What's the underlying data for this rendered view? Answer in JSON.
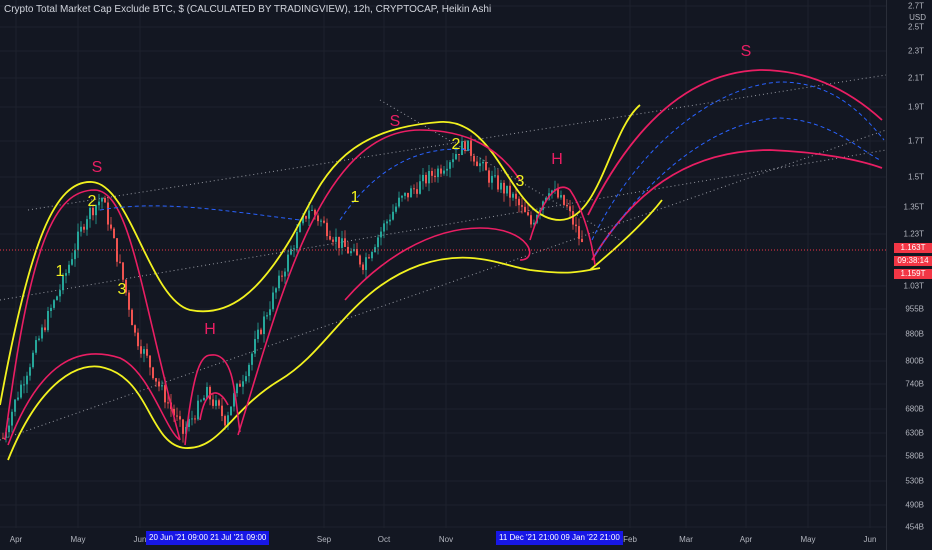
{
  "header": {
    "title": "Crypto Total Market Cap Exclude BTC, $ (CALCULATED BY TRADINGVIEW), 12h, CRYPTOCAP, Heikin Ashi",
    "currency": "USD"
  },
  "price_tags": [
    {
      "label": "1.163T"
    },
    {
      "label": "09:38:14"
    },
    {
      "label": "1.159T"
    }
  ],
  "colors": {
    "background": "#131722",
    "up": "#26a69a",
    "down": "#ef5350",
    "yellow_channel": "#f2f21f",
    "pink_channel": "#e91e63",
    "dashed_projection": "#2962ff",
    "dotted_trend": "#9598a1",
    "label_yellow": "#f2f21f",
    "label_pink": "#e91e63"
  },
  "chart_data": {
    "type": "candlestick",
    "title": "Crypto Total Market Cap Exclude BTC, $ (CALCULATED BY TRADINGVIEW), 12h, CRYPTOCAP, Heikin Ashi",
    "y_scale": "log",
    "y_ticks": [
      "2.7T",
      "2.5T",
      "2.3T",
      "2.1T",
      "1.9T",
      "1.7T",
      "1.5T",
      "1.35T",
      "1.23T",
      "1.03T",
      "955B",
      "880B",
      "800B",
      "740B",
      "680B",
      "630B",
      "580B",
      "530B",
      "490B",
      "454B"
    ],
    "y_tick_values": [
      2.7,
      2.5,
      2.3,
      2.1,
      1.9,
      1.7,
      1.5,
      1.35,
      1.23,
      1.03,
      0.955,
      0.88,
      0.8,
      0.74,
      0.68,
      0.63,
      0.58,
      0.53,
      0.49,
      0.454
    ],
    "x_ticks": [
      "Apr",
      "May",
      "Jun",
      "Sep",
      "Oct",
      "Nov",
      "Feb",
      "Mar",
      "Apr",
      "May",
      "Jun"
    ],
    "x_ranges": [
      {
        "label": "20 Jun '21   09:00     21 Jul '21   09:00"
      },
      {
        "label": "11 Dec '21   21:00    09 Jan '22   21:00"
      }
    ],
    "last_price": "1.163T",
    "countdown": "09:38:14",
    "low_marker": "1.159T",
    "price_path": [
      {
        "t": 0,
        "v": 0.62
      },
      {
        "t": 10,
        "v": 0.82
      },
      {
        "t": 20,
        "v": 1.05
      },
      {
        "t": 28,
        "v": 1.32
      },
      {
        "t": 33,
        "v": 1.4
      },
      {
        "t": 38,
        "v": 1.15
      },
      {
        "t": 44,
        "v": 0.88
      },
      {
        "t": 52,
        "v": 0.74
      },
      {
        "t": 60,
        "v": 0.63
      },
      {
        "t": 68,
        "v": 0.72
      },
      {
        "t": 74,
        "v": 0.66
      },
      {
        "t": 82,
        "v": 0.8
      },
      {
        "t": 92,
        "v": 1.05
      },
      {
        "t": 102,
        "v": 1.35
      },
      {
        "t": 112,
        "v": 1.2
      },
      {
        "t": 120,
        "v": 1.12
      },
      {
        "t": 132,
        "v": 1.38
      },
      {
        "t": 146,
        "v": 1.55
      },
      {
        "t": 154,
        "v": 1.68
      },
      {
        "t": 162,
        "v": 1.5
      },
      {
        "t": 170,
        "v": 1.4
      },
      {
        "t": 176,
        "v": 1.28
      },
      {
        "t": 182,
        "v": 1.45
      },
      {
        "t": 188,
        "v": 1.35
      },
      {
        "t": 194,
        "v": 1.16
      }
    ],
    "annotations": [
      {
        "text": "S",
        "color": "pink"
      },
      {
        "text": "2",
        "color": "yellow"
      },
      {
        "text": "1",
        "color": "yellow"
      },
      {
        "text": "3",
        "color": "yellow"
      },
      {
        "text": "H",
        "color": "pink"
      },
      {
        "text": "1",
        "color": "yellow"
      },
      {
        "text": "S",
        "color": "pink"
      },
      {
        "text": "2",
        "color": "yellow"
      },
      {
        "text": "3",
        "color": "yellow"
      },
      {
        "text": "H",
        "color": "pink"
      },
      {
        "text": "S",
        "color": "pink"
      }
    ]
  }
}
